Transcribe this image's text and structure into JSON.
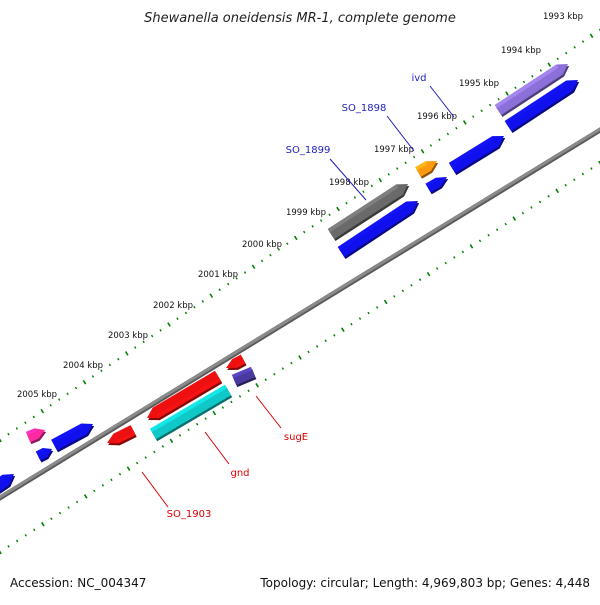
{
  "title": "Shewanella oneidensis MR-1, complete genome",
  "footer": {
    "accession": "Accession: NC_004347",
    "summary": "Topology: circular; Length: 4,969,803 bp; Genes: 4,448"
  },
  "colors": {
    "axis": "#8a8a8a",
    "ticks": "#008000",
    "forward_label": "#1f1fbf",
    "reverse_label": "#dd0000"
  },
  "ticks": [
    {
      "label": "1993 kbp"
    },
    {
      "label": "1994 kbp"
    },
    {
      "label": "1995 kbp"
    },
    {
      "label": "1996 kbp"
    },
    {
      "label": "1997 kbp"
    },
    {
      "label": "1998 kbp"
    },
    {
      "label": "1999 kbp"
    },
    {
      "label": "2000 kbp"
    },
    {
      "label": "2001 kbp"
    },
    {
      "label": "2002 kbp"
    },
    {
      "label": "2003 kbp"
    },
    {
      "label": "2004 kbp"
    },
    {
      "label": "2005 kbp"
    }
  ],
  "features": [
    {
      "name": "purple-gene-forward",
      "color": "#8a70d8"
    },
    {
      "name": "gray-gene-forward",
      "color": "#6a6a6a"
    },
    {
      "name": "orange-gene-forward",
      "color": "#ff9a10"
    },
    {
      "name": "pink-gene-forward",
      "color": "#ff2aa0"
    },
    {
      "name": "blue-gene",
      "color": "#1010ee"
    },
    {
      "name": "red-gene",
      "color": "#ee1010"
    },
    {
      "name": "cyan-gene",
      "color": "#10c8c8"
    },
    {
      "name": "navy-gene",
      "color": "#4a3aa0"
    }
  ],
  "labels": [
    {
      "text": "ivd"
    },
    {
      "text": "SO_1898"
    },
    {
      "text": "SO_1899"
    },
    {
      "text": "sugE"
    },
    {
      "text": "gnd"
    },
    {
      "text": "SO_1903"
    }
  ]
}
